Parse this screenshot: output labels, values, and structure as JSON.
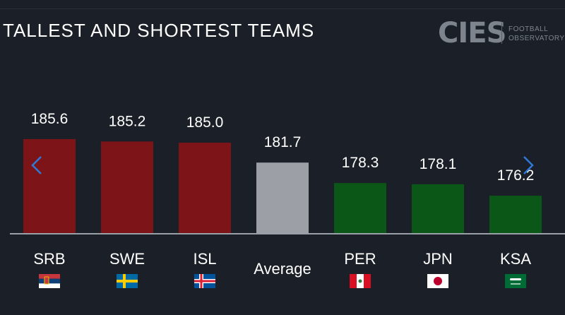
{
  "header": {
    "title": "TALLEST AND SHORTEST TEAMS"
  },
  "logo": {
    "mark": "CIES",
    "line1": "FOOTBALL",
    "line2": "OBSERVATORY"
  },
  "chart_data": {
    "type": "bar",
    "categories": [
      "SRB",
      "SWE",
      "ISL",
      "Average",
      "PER",
      "JPN",
      "KSA"
    ],
    "values": [
      185.6,
      185.2,
      185.0,
      181.7,
      178.3,
      178.1,
      176.2
    ],
    "value_labels": [
      "185.6",
      "185.2",
      "185.0",
      "181.7",
      "178.3",
      "178.1",
      "176.2"
    ],
    "title": "TALLEST AND SHORTEST TEAMS",
    "colors": [
      "#7d1518",
      "#7d1518",
      "#7d1518",
      "#9ca0a6",
      "#0b5717",
      "#0b5717",
      "#0b5717"
    ],
    "flags": [
      "serbia-flag",
      "sweden-flag",
      "iceland-flag",
      "",
      "peru-flag",
      "japan-flag",
      "saudi-arabia-flag"
    ],
    "xlabel": "",
    "ylabel": "",
    "ylim": [
      170,
      187
    ],
    "grid": false,
    "legend": "none"
  },
  "nav": {
    "prev_icon": "chevron-left-icon",
    "next_icon": "chevron-right-icon"
  }
}
